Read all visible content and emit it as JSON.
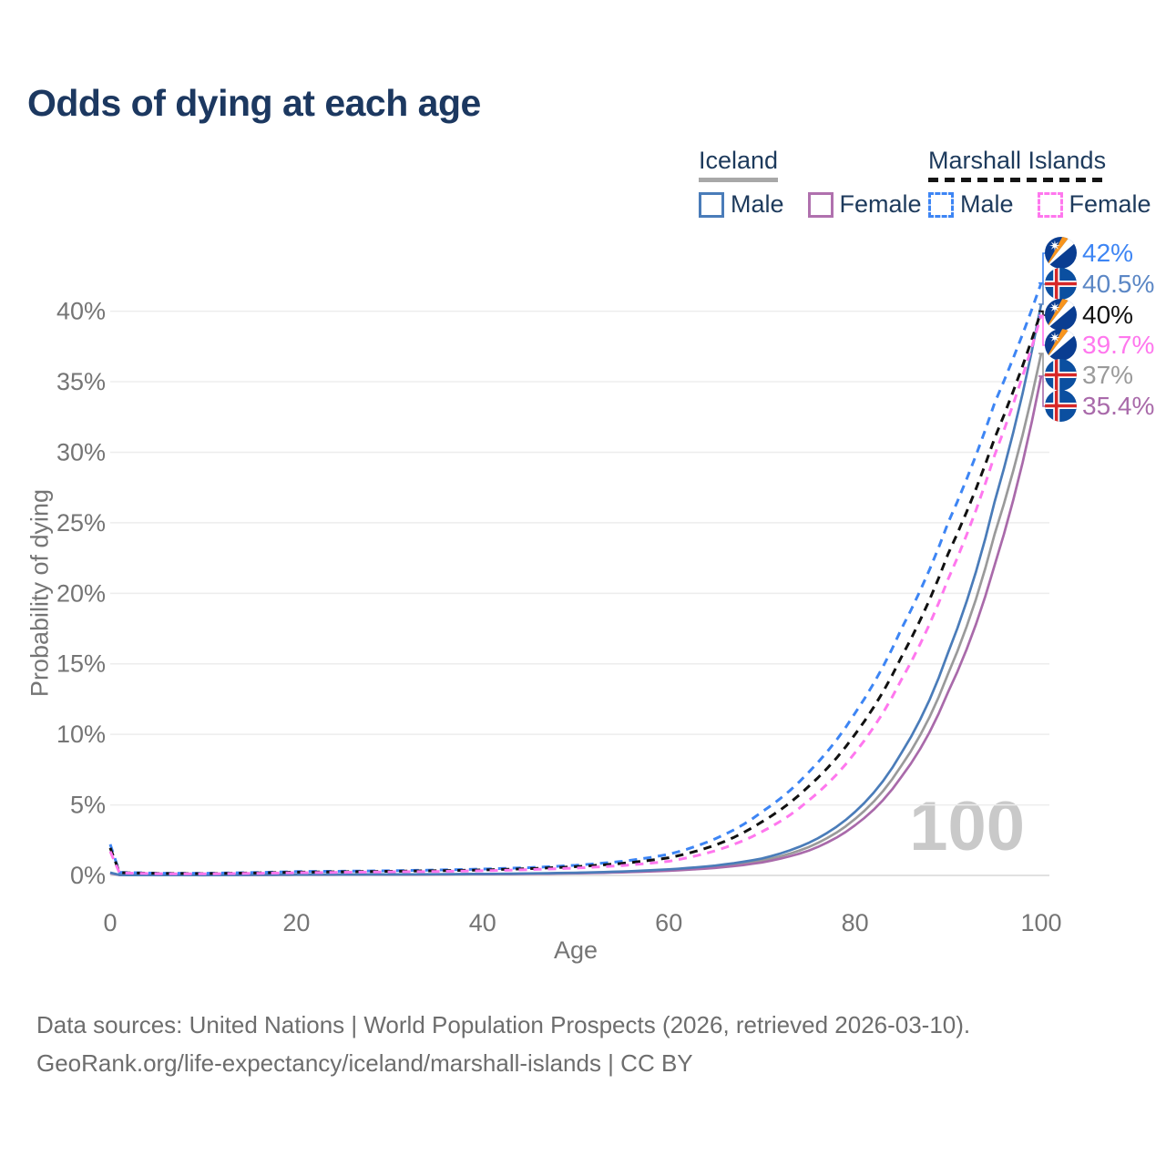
{
  "title": "Odds of dying at each age",
  "legend": {
    "iceland": {
      "label": "Iceland",
      "male": "Male",
      "female": "Female"
    },
    "marshall": {
      "label": "Marshall Islands",
      "male": "Male",
      "female": "Female"
    },
    "colors": {
      "iceland_male": "#4a7cb9",
      "iceland_female": "#b071ae",
      "marshall_male": "#3d85f4",
      "marshall_female": "#ff77ee"
    }
  },
  "watermark": "100",
  "end_labels": [
    {
      "value": "42%",
      "color": "#3d85f4",
      "flag": "marshall-islands"
    },
    {
      "value": "40.5%",
      "color": "#5b87c5",
      "flag": "iceland"
    },
    {
      "value": "40%",
      "color": "#111111",
      "flag": "marshall-islands"
    },
    {
      "value": "39.7%",
      "color": "#ff77ee",
      "flag": "marshall-islands"
    },
    {
      "value": "37%",
      "color": "#9a9a9a",
      "flag": "iceland"
    },
    {
      "value": "35.4%",
      "color": "#a96aaa",
      "flag": "iceland"
    }
  ],
  "footer": {
    "line1": "Data sources: United Nations | World Population Prospects (2026, retrieved 2026-03-10).",
    "line2": "GeoRank.org/life-expectancy/iceland/marshall-islands | CC BY"
  },
  "chart_data": {
    "type": "line",
    "title": "Odds of dying at each age",
    "xlabel": "Age",
    "ylabel": "Probability of dying",
    "xlim": [
      0,
      100
    ],
    "ylim_pct": [
      0,
      44
    ],
    "xticks": [
      0,
      20,
      40,
      60,
      80,
      100
    ],
    "yticks_pct": [
      0,
      5,
      10,
      15,
      20,
      25,
      30,
      35,
      40
    ],
    "grid": "horizontal-only",
    "legend_position": "top-right",
    "series": [
      {
        "name": "Iceland Total",
        "country": "Iceland",
        "sex": "total",
        "color": "#9a9a9a",
        "dash": false,
        "end_value_pct": 37,
        "points": [
          [
            0,
            0.18
          ],
          [
            1,
            0.027
          ],
          [
            5,
            0.02
          ],
          [
            10,
            0.018
          ],
          [
            15,
            0.035
          ],
          [
            20,
            0.05
          ],
          [
            25,
            0.057
          ],
          [
            30,
            0.063
          ],
          [
            35,
            0.077
          ],
          [
            40,
            0.095
          ],
          [
            45,
            0.125
          ],
          [
            50,
            0.17
          ],
          [
            55,
            0.25
          ],
          [
            60,
            0.38
          ],
          [
            65,
            0.62
          ],
          [
            70,
            1.05
          ],
          [
            75,
            2.0
          ],
          [
            80,
            4.0
          ],
          [
            85,
            7.8
          ],
          [
            90,
            14.3
          ],
          [
            95,
            24.2
          ],
          [
            100,
            37
          ]
        ]
      },
      {
        "name": "Iceland Female",
        "country": "Iceland",
        "sex": "female",
        "color": "#a96aaa",
        "dash": false,
        "end_value_pct": 35.4,
        "points": [
          [
            0,
            0.16
          ],
          [
            1,
            0.024
          ],
          [
            5,
            0.018
          ],
          [
            10,
            0.016
          ],
          [
            15,
            0.03
          ],
          [
            20,
            0.042
          ],
          [
            25,
            0.05
          ],
          [
            30,
            0.056
          ],
          [
            35,
            0.07
          ],
          [
            40,
            0.085
          ],
          [
            45,
            0.11
          ],
          [
            50,
            0.15
          ],
          [
            55,
            0.22
          ],
          [
            60,
            0.33
          ],
          [
            65,
            0.53
          ],
          [
            70,
            0.92
          ],
          [
            75,
            1.75
          ],
          [
            80,
            3.55
          ],
          [
            85,
            7.0
          ],
          [
            90,
            13.0
          ],
          [
            95,
            22.0
          ],
          [
            100,
            35.4
          ]
        ]
      },
      {
        "name": "Iceland Male",
        "country": "Iceland",
        "sex": "male",
        "color": "#4a7cb9",
        "dash": false,
        "end_value_pct": 40.5,
        "points": [
          [
            0,
            0.2
          ],
          [
            1,
            0.03
          ],
          [
            5,
            0.022
          ],
          [
            10,
            0.02
          ],
          [
            15,
            0.04
          ],
          [
            20,
            0.06
          ],
          [
            25,
            0.065
          ],
          [
            30,
            0.07
          ],
          [
            35,
            0.085
          ],
          [
            40,
            0.105
          ],
          [
            45,
            0.14
          ],
          [
            50,
            0.19
          ],
          [
            55,
            0.28
          ],
          [
            60,
            0.43
          ],
          [
            65,
            0.7
          ],
          [
            70,
            1.2
          ],
          [
            75,
            2.3
          ],
          [
            80,
            4.5
          ],
          [
            85,
            8.7
          ],
          [
            90,
            15.8
          ],
          [
            95,
            26.5
          ],
          [
            100,
            40.5
          ]
        ]
      },
      {
        "name": "Marshall Islands Male",
        "country": "Marshall Islands",
        "sex": "male",
        "color": "#3d85f4",
        "dash": true,
        "end_value_pct": 42,
        "points": [
          [
            0,
            2.2
          ],
          [
            1,
            0.22
          ],
          [
            5,
            0.16
          ],
          [
            10,
            0.15
          ],
          [
            15,
            0.2
          ],
          [
            20,
            0.27
          ],
          [
            25,
            0.3
          ],
          [
            30,
            0.33
          ],
          [
            35,
            0.38
          ],
          [
            40,
            0.45
          ],
          [
            45,
            0.55
          ],
          [
            50,
            0.72
          ],
          [
            55,
            1.0
          ],
          [
            60,
            1.5
          ],
          [
            65,
            2.6
          ],
          [
            70,
            4.5
          ],
          [
            75,
            7.3
          ],
          [
            80,
            11.5
          ],
          [
            85,
            17.5
          ],
          [
            90,
            25.0
          ],
          [
            95,
            33.5
          ],
          [
            100,
            42
          ]
        ]
      },
      {
        "name": "Marshall Islands Total",
        "country": "Marshall Islands",
        "sex": "total",
        "color": "#111111",
        "dash": true,
        "end_value_pct": 40,
        "points": [
          [
            0,
            1.95
          ],
          [
            1,
            0.2
          ],
          [
            5,
            0.14
          ],
          [
            10,
            0.13
          ],
          [
            15,
            0.17
          ],
          [
            20,
            0.23
          ],
          [
            25,
            0.26
          ],
          [
            30,
            0.29
          ],
          [
            35,
            0.33
          ],
          [
            40,
            0.39
          ],
          [
            45,
            0.48
          ],
          [
            50,
            0.62
          ],
          [
            55,
            0.85
          ],
          [
            60,
            1.25
          ],
          [
            65,
            2.15
          ],
          [
            70,
            3.8
          ],
          [
            75,
            6.3
          ],
          [
            80,
            10.0
          ],
          [
            85,
            15.5
          ],
          [
            90,
            22.8
          ],
          [
            95,
            31.0
          ],
          [
            100,
            40
          ]
        ]
      },
      {
        "name": "Marshall Islands Female",
        "country": "Marshall Islands",
        "sex": "female",
        "color": "#ff77ee",
        "dash": true,
        "end_value_pct": 39.7,
        "points": [
          [
            0,
            1.7
          ],
          [
            1,
            0.18
          ],
          [
            5,
            0.12
          ],
          [
            10,
            0.11
          ],
          [
            15,
            0.14
          ],
          [
            20,
            0.19
          ],
          [
            25,
            0.22
          ],
          [
            30,
            0.25
          ],
          [
            35,
            0.28
          ],
          [
            40,
            0.33
          ],
          [
            45,
            0.41
          ],
          [
            50,
            0.52
          ],
          [
            55,
            0.7
          ],
          [
            60,
            1.0
          ],
          [
            65,
            1.75
          ],
          [
            70,
            3.1
          ],
          [
            75,
            5.3
          ],
          [
            80,
            8.7
          ],
          [
            85,
            13.9
          ],
          [
            90,
            21.0
          ],
          [
            95,
            29.8
          ],
          [
            100,
            39.7
          ]
        ]
      }
    ]
  }
}
